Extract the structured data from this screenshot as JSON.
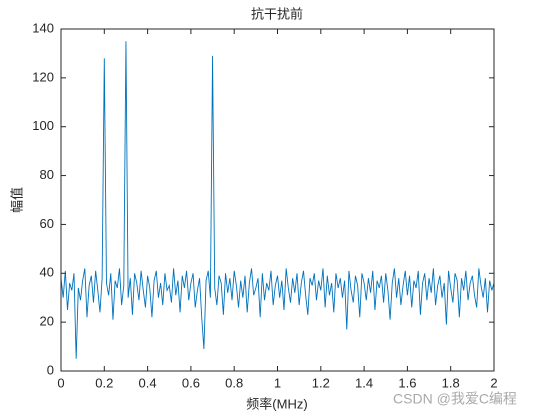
{
  "chart_data": {
    "type": "line",
    "title": "抗干扰前",
    "x_label": "频率(MHz)",
    "y_label": "幅值",
    "annotation": "CSDN @我爱C编程",
    "color": "#0072bd",
    "xlim": [
      0,
      2
    ],
    "ylim": [
      0,
      140
    ],
    "xticks": [
      0,
      0.2,
      0.4,
      0.6,
      0.8,
      1,
      1.2,
      1.4,
      1.6,
      1.8,
      2
    ],
    "yticks": [
      0,
      20,
      40,
      60,
      80,
      100,
      120,
      140
    ],
    "x": [
      0,
      0.01,
      0.02,
      0.03,
      0.04,
      0.05,
      0.06,
      0.07,
      0.08,
      0.09,
      0.1,
      0.11,
      0.12,
      0.13,
      0.14,
      0.15,
      0.16,
      0.17,
      0.18,
      0.19,
      0.2,
      0.21,
      0.22,
      0.23,
      0.24,
      0.25,
      0.26,
      0.27,
      0.28,
      0.29,
      0.3,
      0.31,
      0.32,
      0.33,
      0.34,
      0.35,
      0.36,
      0.37,
      0.38,
      0.39,
      0.4,
      0.41,
      0.42,
      0.43,
      0.44,
      0.45,
      0.46,
      0.47,
      0.48,
      0.49,
      0.5,
      0.51,
      0.52,
      0.53,
      0.54,
      0.55,
      0.56,
      0.57,
      0.58,
      0.59,
      0.6,
      0.61,
      0.62,
      0.63,
      0.64,
      0.65,
      0.66,
      0.67,
      0.68,
      0.69,
      0.7,
      0.71,
      0.72,
      0.73,
      0.74,
      0.75,
      0.76,
      0.77,
      0.78,
      0.79,
      0.8,
      0.81,
      0.82,
      0.83,
      0.84,
      0.85,
      0.86,
      0.87,
      0.88,
      0.89,
      0.9,
      0.91,
      0.92,
      0.93,
      0.94,
      0.95,
      0.96,
      0.97,
      0.98,
      0.99,
      1,
      1.01,
      1.02,
      1.03,
      1.04,
      1.05,
      1.06,
      1.07,
      1.08,
      1.09,
      1.1,
      1.11,
      1.12,
      1.13,
      1.14,
      1.15,
      1.16,
      1.17,
      1.18,
      1.19,
      1.2,
      1.21,
      1.22,
      1.23,
      1.24,
      1.25,
      1.26,
      1.27,
      1.28,
      1.29,
      1.3,
      1.31,
      1.32,
      1.33,
      1.34,
      1.35,
      1.36,
      1.37,
      1.38,
      1.39,
      1.4,
      1.41,
      1.42,
      1.43,
      1.44,
      1.45,
      1.46,
      1.47,
      1.48,
      1.49,
      1.5,
      1.51,
      1.52,
      1.53,
      1.54,
      1.55,
      1.56,
      1.57,
      1.58,
      1.59,
      1.6,
      1.61,
      1.62,
      1.63,
      1.64,
      1.65,
      1.66,
      1.67,
      1.68,
      1.69,
      1.7,
      1.71,
      1.72,
      1.73,
      1.74,
      1.75,
      1.76,
      1.77,
      1.78,
      1.79,
      1.8,
      1.81,
      1.82,
      1.83,
      1.84,
      1.85,
      1.86,
      1.87,
      1.88,
      1.89,
      1.9,
      1.91,
      1.92,
      1.93,
      1.94,
      1.95,
      1.96,
      1.97,
      1.98,
      1.99,
      2
    ],
    "values": [
      38,
      30,
      41,
      25,
      36,
      33,
      40,
      5,
      34,
      29,
      37,
      42,
      22,
      35,
      39,
      28,
      41,
      33,
      24,
      38,
      128,
      36,
      31,
      40,
      21,
      37,
      34,
      42,
      27,
      35,
      135,
      30,
      38,
      23,
      40,
      36,
      29,
      41,
      33,
      26,
      39,
      34,
      22,
      37,
      41,
      30,
      36,
      27,
      40,
      33,
      35,
      28,
      42,
      31,
      37,
      24,
      39,
      34,
      41,
      29,
      36,
      40,
      26,
      33,
      38,
      22,
      9,
      37,
      41,
      30,
      129,
      34,
      27,
      39,
      36,
      23,
      40,
      32,
      38,
      29,
      41,
      35,
      26,
      37,
      30,
      39,
      24,
      36,
      42,
      31,
      34,
      38,
      22,
      40,
      29,
      36,
      33,
      41,
      27,
      35,
      39,
      30,
      37,
      25,
      42,
      34,
      28,
      38,
      32,
      40,
      27,
      36,
      41,
      31,
      23,
      38,
      35,
      40,
      29,
      37,
      33,
      42,
      26,
      39,
      31,
      36,
      24,
      40,
      34,
      38,
      30,
      37,
      17,
      41,
      33,
      28,
      39,
      35,
      22,
      40,
      36,
      29,
      38,
      32,
      41,
      25,
      37,
      34,
      39,
      28,
      40,
      33,
      21,
      36,
      42,
      30,
      38,
      27,
      35,
      41,
      31,
      39,
      26,
      37,
      34,
      41,
      23,
      36,
      40,
      29,
      38,
      32,
      42,
      27,
      35,
      39,
      30,
      36,
      19,
      41,
      34,
      28,
      40,
      37,
      22,
      38,
      33,
      41,
      29,
      36,
      39,
      31,
      26,
      42,
      35,
      30,
      38,
      24,
      37,
      33,
      36
    ]
  }
}
